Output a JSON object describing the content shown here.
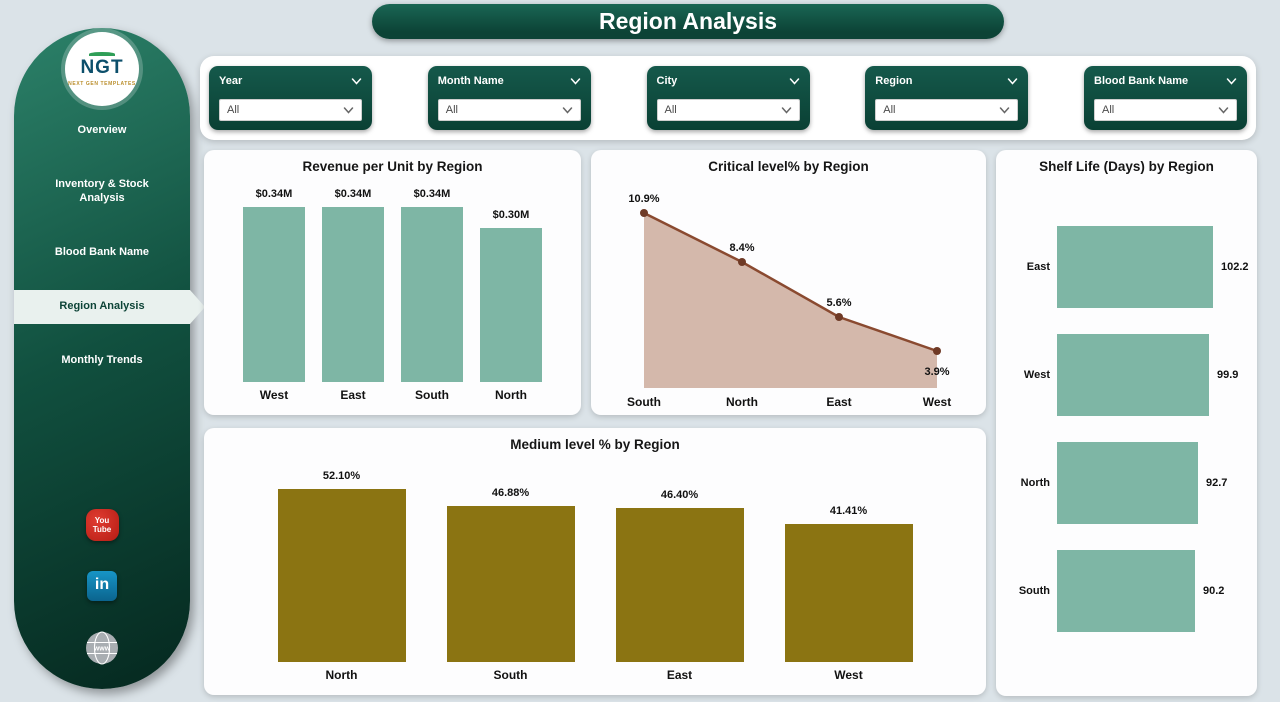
{
  "page": {
    "title": "Region Analysis"
  },
  "sidebar": {
    "logo": {
      "text": "NGT",
      "subtext": "NEXT GEN TEMPLATES"
    },
    "items": [
      {
        "label": "Overview",
        "active": false
      },
      {
        "label": "Inventory & Stock Analysis",
        "active": false
      },
      {
        "label": "Blood Bank Name",
        "active": false
      },
      {
        "label": "Region Analysis",
        "active": true
      },
      {
        "label": "Monthly Trends",
        "active": false
      }
    ],
    "social": {
      "youtube_line1": "You",
      "youtube_line2": "Tube",
      "linkedin": "in",
      "website": "www"
    }
  },
  "filters": [
    {
      "label": "Year",
      "value": "All"
    },
    {
      "label": "Month Name",
      "value": "All"
    },
    {
      "label": "City",
      "value": "All"
    },
    {
      "label": "Region",
      "value": "All"
    },
    {
      "label": "Blood Bank Name",
      "value": "All"
    }
  ],
  "colors": {
    "dark_green": "#0e5244",
    "teal_bar": "#7eb6a5",
    "olive_bar": "#8b7412",
    "line_brown": "#8a4a30",
    "dot_brown": "#6f3a26",
    "area_fill": "#d4b8ab",
    "background": "#dbe3e8"
  },
  "chart_data": [
    {
      "id": "revenue",
      "type": "bar",
      "title": "Revenue per Unit by Region",
      "categories": [
        "West",
        "East",
        "South",
        "North"
      ],
      "values": [
        0.34,
        0.34,
        0.34,
        0.3
      ],
      "labels": [
        "$0.34M",
        "$0.34M",
        "$0.34M",
        "$0.30M"
      ],
      "xlabel": "Region",
      "ylabel": "Revenue per Unit",
      "ylim": [
        0,
        0.34
      ],
      "grid": false,
      "legend": false
    },
    {
      "id": "critical",
      "type": "area",
      "title": "Critical level% by Region",
      "categories": [
        "South",
        "North",
        "East",
        "West"
      ],
      "values": [
        10.9,
        8.4,
        5.6,
        3.9
      ],
      "labels": [
        "10.9%",
        "8.4%",
        "5.6%",
        "3.9%"
      ],
      "xlabel": "Region",
      "ylabel": "Critical level%",
      "ylim": [
        2,
        11
      ],
      "grid": false,
      "legend": false
    },
    {
      "id": "shelf",
      "type": "horizontal-bar",
      "title": "Shelf Life (Days) by Region",
      "categories": [
        "East",
        "West",
        "North",
        "South"
      ],
      "values": [
        102.2,
        99.9,
        92.7,
        90.2
      ],
      "labels": [
        "102.2",
        "99.9",
        "92.7",
        "90.2"
      ],
      "xlabel": "Shelf Life (Days)",
      "ylabel": "Region",
      "xlim": [
        0,
        102.2
      ],
      "grid": false,
      "legend": false
    },
    {
      "id": "medium",
      "type": "bar",
      "title": "Medium level % by Region",
      "categories": [
        "North",
        "South",
        "East",
        "West"
      ],
      "values": [
        52.1,
        46.88,
        46.4,
        41.41
      ],
      "labels": [
        "52.10%",
        "46.88%",
        "46.40%",
        "41.41%"
      ],
      "xlabel": "Region",
      "ylabel": "Medium level %",
      "ylim": [
        0,
        52.1
      ],
      "grid": false,
      "legend": false
    }
  ]
}
